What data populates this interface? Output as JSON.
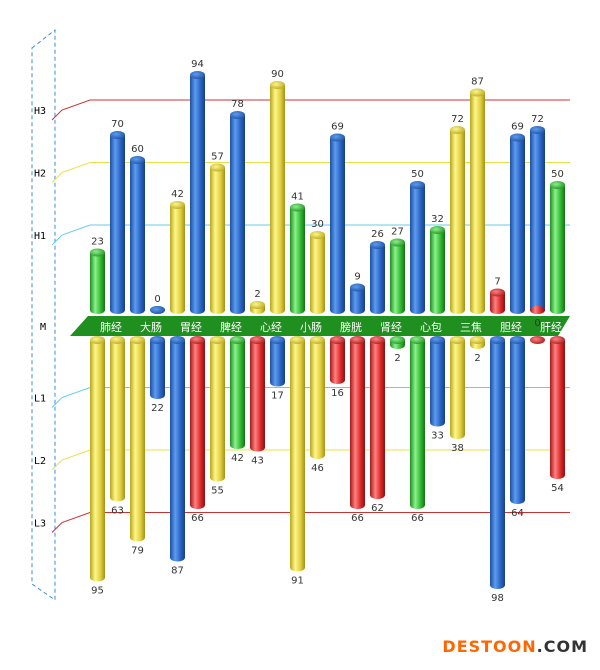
{
  "chart_data": {
    "type": "bar",
    "categories": [
      "肺经",
      "大肠",
      "胃经",
      "脾经",
      "心经",
      "小肠",
      "膀胱",
      "肾经",
      "心包",
      "三焦",
      "胆经",
      "肝经"
    ],
    "y_ticks": [
      "H3",
      "H2",
      "H1",
      "M",
      "L1",
      "L2",
      "L3"
    ],
    "upper_bars": [
      [
        {
          "v": 23,
          "c": "green"
        },
        {
          "v": 70,
          "c": "blue"
        }
      ],
      [
        {
          "v": 60,
          "c": "blue"
        },
        {
          "v": 0,
          "c": "blue"
        }
      ],
      [
        {
          "v": 42,
          "c": "yellow"
        },
        {
          "v": 94,
          "c": "blue"
        }
      ],
      [
        {
          "v": 57,
          "c": "yellow"
        },
        {
          "v": 78,
          "c": "blue"
        }
      ],
      [
        {
          "v": 2,
          "c": "yellow"
        },
        {
          "v": 90,
          "c": "yellow"
        }
      ],
      [
        {
          "v": 41,
          "c": "green"
        },
        {
          "v": 30,
          "c": "yellow"
        }
      ],
      [
        {
          "v": 69,
          "c": "blue"
        },
        {
          "v": 9,
          "c": "blue"
        }
      ],
      [
        {
          "v": 26,
          "c": "blue"
        },
        {
          "v": 27,
          "c": "green"
        }
      ],
      [
        {
          "v": 50,
          "c": "blue"
        },
        {
          "v": 32,
          "c": "green"
        }
      ],
      [
        {
          "v": 72,
          "c": "yellow"
        },
        {
          "v": 87,
          "c": "yellow"
        }
      ],
      [
        {
          "v": 7,
          "c": "red"
        },
        {
          "v": 69,
          "c": "blue"
        }
      ],
      [
        {
          "v": 72,
          "c": "blue"
        },
        {
          "v": 50,
          "c": "green"
        }
      ]
    ],
    "lower_bars": [
      [
        {
          "v": 95,
          "c": "yellow"
        },
        {
          "v": 63,
          "c": "yellow"
        }
      ],
      [
        {
          "v": 79,
          "c": "yellow"
        },
        {
          "v": 22,
          "c": "blue"
        }
      ],
      [
        {
          "v": 87,
          "c": "blue"
        },
        {
          "v": 66,
          "c": "red"
        }
      ],
      [
        {
          "v": 55,
          "c": "yellow"
        },
        {
          "v": 42,
          "c": "green"
        }
      ],
      [
        {
          "v": 43,
          "c": "red"
        },
        {
          "v": 17,
          "c": "blue"
        }
      ],
      [
        {
          "v": 91,
          "c": "yellow"
        },
        {
          "v": 46,
          "c": "yellow"
        }
      ],
      [
        {
          "v": 16,
          "c": "red"
        },
        {
          "v": 66,
          "c": "red"
        }
      ],
      [
        {
          "v": 62,
          "c": "red"
        },
        {
          "v": 2,
          "c": "green"
        }
      ],
      [
        {
          "v": 66,
          "c": "green"
        },
        {
          "v": 33,
          "c": "blue"
        }
      ],
      [
        {
          "v": 38,
          "c": "yellow"
        },
        {
          "v": 2,
          "c": "yellow"
        }
      ],
      [
        {
          "v": 98,
          "c": "blue"
        },
        {
          "v": 64,
          "c": "blue"
        }
      ],
      [
        {
          "v": 0,
          "c": "red"
        },
        {
          "v": 54,
          "c": "red"
        }
      ]
    ],
    "level_lines": [
      {
        "tick": "H3",
        "value": 80,
        "color": "#cc3333"
      },
      {
        "tick": "H2",
        "value": 55,
        "color": "#e8e04a"
      },
      {
        "tick": "H1",
        "value": 30,
        "color": "#66ccee"
      },
      {
        "tick": "L1",
        "value": -23,
        "color": "#66ccee"
      },
      {
        "tick": "L2",
        "value": -48,
        "color": "#e8e04a"
      },
      {
        "tick": "L3",
        "value": -73,
        "color": "#cc3333"
      }
    ],
    "ylim": [
      -100,
      100
    ],
    "colors": {
      "blue": "#2f6fd0",
      "yellow": "#e8d84a",
      "green": "#3cc43c",
      "red": "#e03030",
      "band": "#1f8f1f"
    }
  },
  "watermark": {
    "part1": "DESTOON",
    "part2": ".COM"
  }
}
